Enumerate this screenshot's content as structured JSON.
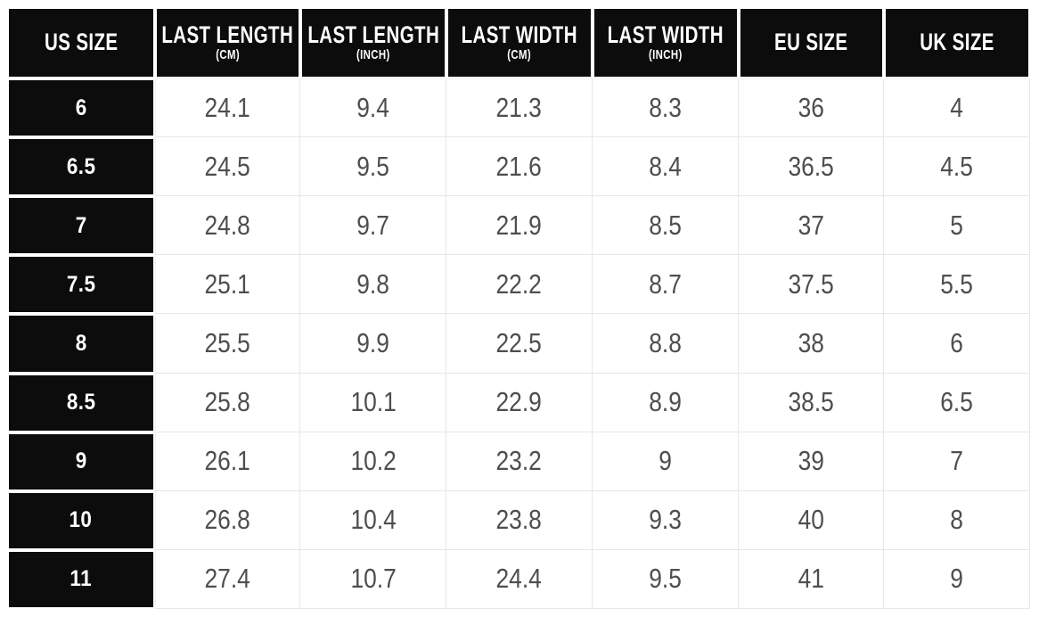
{
  "chart_data": {
    "type": "table",
    "title": "",
    "columns": [
      {
        "key": "us-size",
        "label": "US SIZE",
        "sub": ""
      },
      {
        "key": "last-length-cm",
        "label": "LAST LENGTH",
        "sub": "(CM)"
      },
      {
        "key": "last-length-inch",
        "label": "LAST LENGTH",
        "sub": "(INCH)"
      },
      {
        "key": "last-width-cm",
        "label": "LAST WIDTH",
        "sub": "(CM)"
      },
      {
        "key": "last-width-inch",
        "label": "LAST WIDTH",
        "sub": "(INCH)"
      },
      {
        "key": "eu-size",
        "label": "EU SIZE",
        "sub": ""
      },
      {
        "key": "uk-size",
        "label": "UK SIZE",
        "sub": ""
      }
    ],
    "rows": [
      [
        "6",
        "24.1",
        "9.4",
        "21.3",
        "8.3",
        "36",
        "4"
      ],
      [
        "6.5",
        "24.5",
        "9.5",
        "21.6",
        "8.4",
        "36.5",
        "4.5"
      ],
      [
        "7",
        "24.8",
        "9.7",
        "21.9",
        "8.5",
        "37",
        "5"
      ],
      [
        "7.5",
        "25.1",
        "9.8",
        "22.2",
        "8.7",
        "37.5",
        "5.5"
      ],
      [
        "8",
        "25.5",
        "9.9",
        "22.5",
        "8.8",
        "38",
        "6"
      ],
      [
        "8.5",
        "25.8",
        "10.1",
        "22.9",
        "8.9",
        "38.5",
        "6.5"
      ],
      [
        "9",
        "26.1",
        "10.2",
        "23.2",
        "9",
        "39",
        "7"
      ],
      [
        "10",
        "26.8",
        "10.4",
        "23.8",
        "9.3",
        "40",
        "8"
      ],
      [
        "11",
        "27.4",
        "10.7",
        "24.4",
        "9.5",
        "41",
        "9"
      ]
    ]
  },
  "colors": {
    "header_bg": "#0c0c0c",
    "header_text": "#ffffff",
    "row_label_bg": "#0c0c0c",
    "row_label_text": "#ffffff",
    "cell_bg": "#ffffff",
    "cell_text": "#4e4e4e",
    "grid_line": "#e7e7e7"
  }
}
